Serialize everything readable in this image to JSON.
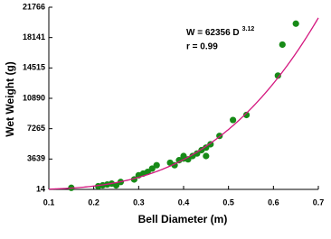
{
  "chart_data": {
    "type": "scatter",
    "xlabel": "Bell Diameter (m)",
    "ylabel": "Wet Weight (g)",
    "x": [
      0.15,
      0.21,
      0.22,
      0.23,
      0.24,
      0.25,
      0.26,
      0.29,
      0.3,
      0.31,
      0.32,
      0.33,
      0.34,
      0.37,
      0.38,
      0.39,
      0.4,
      0.4,
      0.41,
      0.42,
      0.43,
      0.44,
      0.45,
      0.45,
      0.46,
      0.48,
      0.51,
      0.54,
      0.61,
      0.62,
      0.65
    ],
    "values": [
      200,
      400,
      500,
      600,
      700,
      500,
      900,
      1200,
      1700,
      1900,
      2100,
      2500,
      2900,
      3200,
      2900,
      3500,
      3700,
      4000,
      3600,
      4000,
      4300,
      4700,
      5000,
      4000,
      5400,
      6400,
      8300,
      8900,
      13600,
      17300,
      19800
    ],
    "color": "#178a17",
    "fit": {
      "prefix": "W = ",
      "coefficient": 62356,
      "variable": " D",
      "exponent": 3.12,
      "color": "#d4177f"
    },
    "r_label": "r = 0.99",
    "xlim": [
      0.1,
      0.7
    ],
    "xticks": [
      0.1,
      0.2,
      0.3,
      0.4,
      0.5,
      0.6,
      0.7
    ],
    "ylim": [
      14,
      21766
    ],
    "yticks": [
      14,
      3639,
      7265,
      10890,
      14515,
      18141,
      21766
    ]
  }
}
